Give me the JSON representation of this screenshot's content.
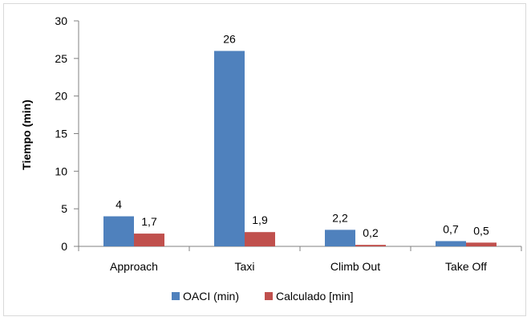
{
  "chart_data": {
    "type": "bar",
    "title": "",
    "xlabel": "",
    "ylabel": "Tiempo (min)",
    "ylim": [
      0,
      30
    ],
    "yticks": [
      0,
      5,
      10,
      15,
      20,
      25,
      30
    ],
    "grid": false,
    "legend_position": "bottom",
    "categories": [
      "Approach",
      "Taxi",
      "Climb Out",
      "Take Off"
    ],
    "series": [
      {
        "name": "OACI (min)",
        "color": "#4f81bd",
        "values": [
          4,
          26,
          2.2,
          0.7
        ],
        "labels": [
          "4",
          "26",
          "2,2",
          "0,7"
        ]
      },
      {
        "name": "Calculado [min]",
        "color": "#c0504d",
        "values": [
          1.7,
          1.9,
          0.2,
          0.5
        ],
        "labels": [
          "1,7",
          "1,9",
          "0,2",
          "0,5"
        ]
      }
    ]
  }
}
